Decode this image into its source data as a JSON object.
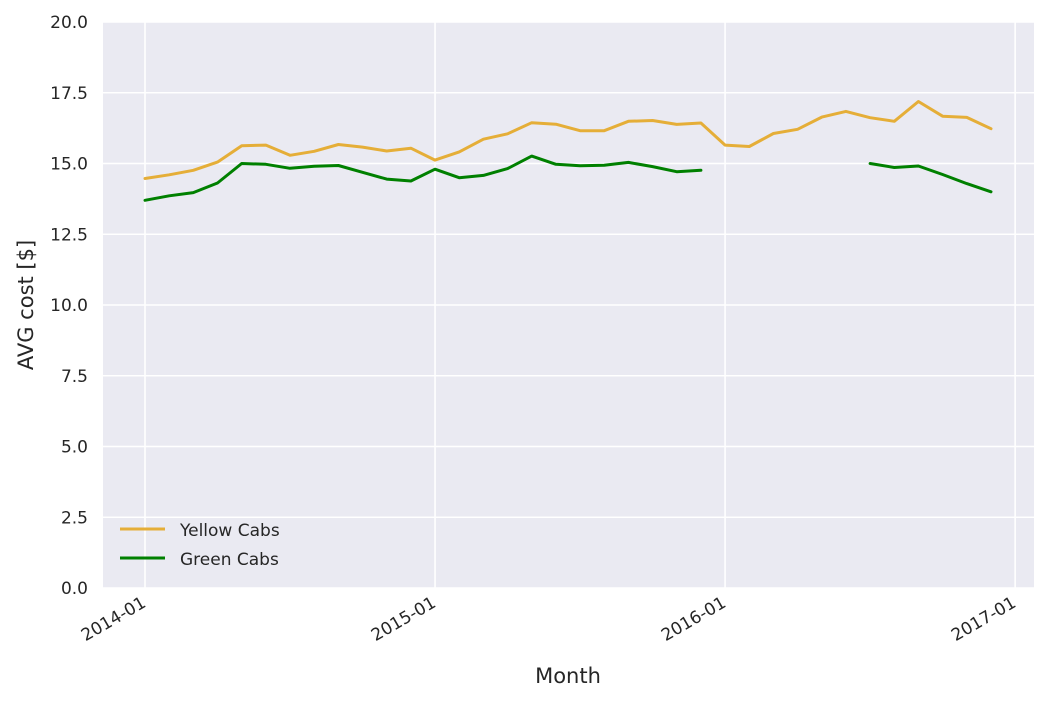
{
  "chart_data": {
    "type": "line",
    "title": "",
    "xlabel": "Month",
    "ylabel": "AVG cost [$]",
    "ylim": [
      0,
      20
    ],
    "yticks": [
      "0.0",
      "2.5",
      "5.0",
      "7.5",
      "10.0",
      "12.5",
      "15.0",
      "17.5",
      "20.0"
    ],
    "xticks": [
      "2014-01",
      "2015-01",
      "2016-01",
      "2017-01"
    ],
    "grid": true,
    "legend_position": "lower-left",
    "series": [
      {
        "name": "Yellow Cabs",
        "color": "#e5ae38",
        "x": [
          "2014-01",
          "2014-02",
          "2014-03",
          "2014-04",
          "2014-05",
          "2014-06",
          "2014-07",
          "2014-08",
          "2014-09",
          "2014-10",
          "2014-11",
          "2014-12",
          "2015-01",
          "2015-02",
          "2015-03",
          "2015-04",
          "2015-05",
          "2015-06",
          "2015-07",
          "2015-08",
          "2015-09",
          "2015-10",
          "2015-11",
          "2015-12",
          "2016-01",
          "2016-02",
          "2016-03",
          "2016-04",
          "2016-05",
          "2016-06",
          "2016-07",
          "2016-08",
          "2016-09",
          "2016-10",
          "2016-11",
          "2016-12"
        ],
        "values": [
          14.47,
          14.6,
          14.76,
          15.05,
          15.63,
          15.65,
          15.29,
          15.43,
          15.67,
          15.58,
          15.44,
          15.54,
          15.12,
          15.41,
          15.86,
          16.05,
          16.44,
          16.39,
          16.16,
          16.16,
          16.49,
          16.52,
          16.38,
          16.43,
          15.65,
          15.6,
          16.06,
          16.21,
          16.64,
          16.84,
          16.62,
          16.49,
          17.19,
          16.67,
          16.63,
          16.23
        ]
      },
      {
        "name": "Green Cabs",
        "color": "#008000",
        "x": [
          "2014-01",
          "2014-02",
          "2014-03",
          "2014-04",
          "2014-05",
          "2014-06",
          "2014-07",
          "2014-08",
          "2014-09",
          "2014-10",
          "2014-11",
          "2014-12",
          "2015-01",
          "2015-02",
          "2015-03",
          "2015-04",
          "2015-05",
          "2015-06",
          "2015-07",
          "2015-08",
          "2015-09",
          "2015-10",
          "2015-11",
          "2015-12",
          "2016-01",
          "2016-02",
          "2016-03",
          "2016-04",
          "2016-05",
          "2016-06",
          "2016-07",
          "2016-08",
          "2016-09",
          "2016-10",
          "2016-11",
          "2016-12"
        ],
        "values": [
          13.7,
          13.86,
          13.97,
          14.31,
          15.0,
          14.97,
          14.83,
          14.9,
          14.93,
          14.69,
          14.45,
          14.38,
          14.8,
          14.5,
          14.58,
          14.82,
          15.26,
          14.97,
          14.92,
          14.94,
          15.04,
          14.89,
          14.71,
          14.76,
          null,
          null,
          null,
          null,
          null,
          null,
          15.0,
          14.86,
          14.91,
          14.61,
          14.29,
          14.0
        ]
      }
    ]
  }
}
